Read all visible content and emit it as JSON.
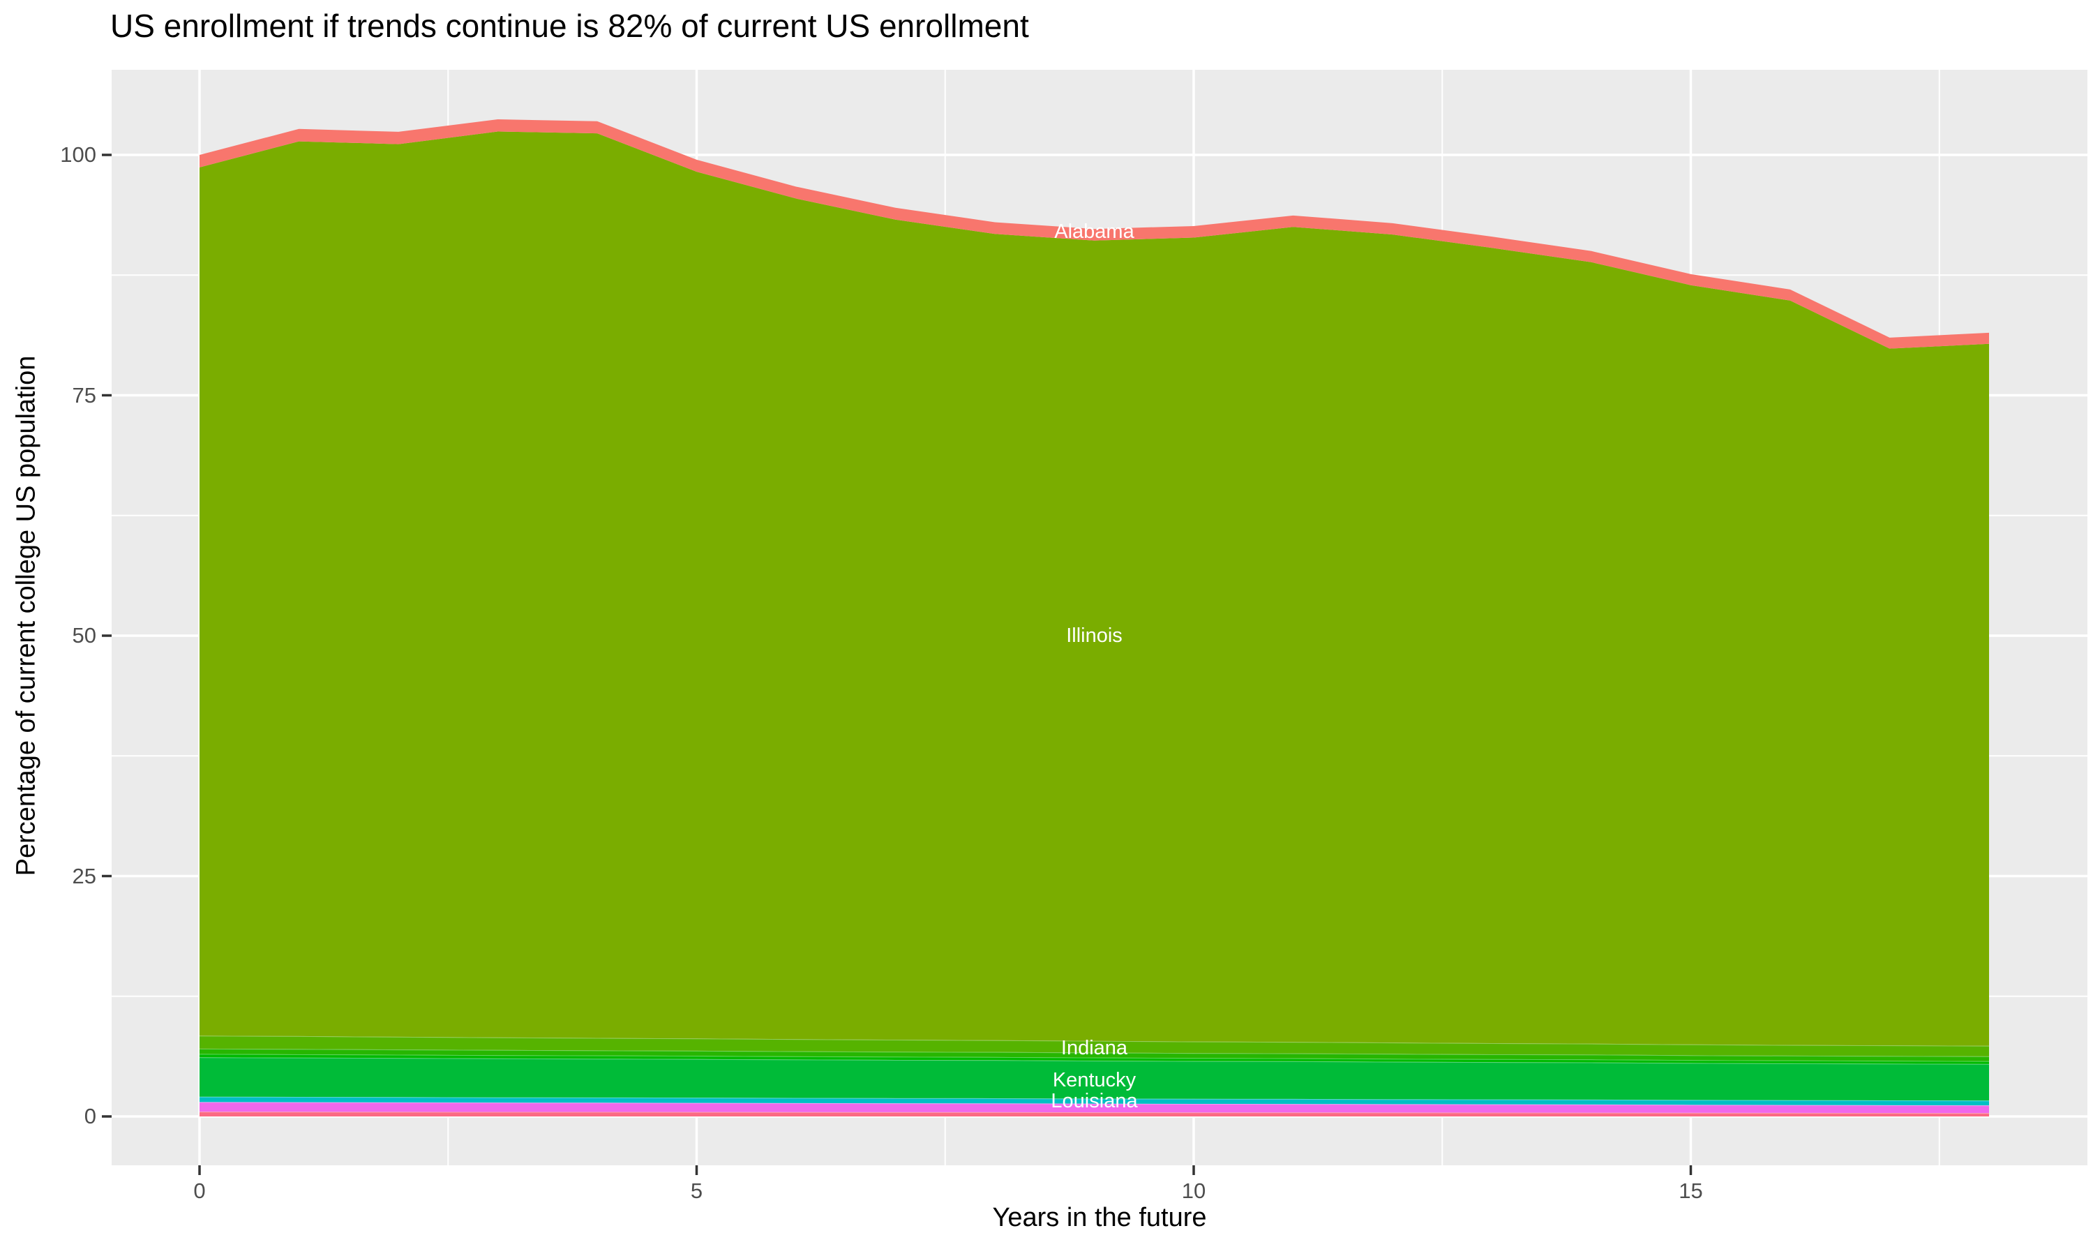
{
  "title": "US enrollment if trends continue is 82% of current US enrollment",
  "axes": {
    "x_label": "Years in the future",
    "y_label": "Percentage of current college US population",
    "x_ticks": [
      0,
      5,
      10,
      15
    ],
    "y_ticks": [
      0,
      25,
      50,
      75,
      100
    ],
    "x_range": [
      0,
      18
    ]
  },
  "colors": {
    "panel_background": "#EBEBEB",
    "gridline": "#FFFFFF",
    "tick_mark": "#333333",
    "tick_text": "#4D4D4D",
    "title_text": "#000000",
    "area_label_text": "#FFFFFF"
  },
  "chart_data": {
    "type": "area",
    "stacked": true,
    "title": "US enrollment if trends continue is 82% of current US enrollment",
    "xlabel": "Years in the future",
    "ylabel": "Percentage of current college US population",
    "xlim": [
      0,
      18
    ],
    "ylim_ticks": [
      0,
      100
    ],
    "grid": true,
    "legend": "none",
    "x": [
      0,
      1,
      2,
      3,
      4,
      5,
      6,
      7,
      8,
      9,
      10,
      11,
      12,
      13,
      14,
      15,
      16,
      17,
      18
    ],
    "total_envelope": [
      100.0,
      102.7,
      102.4,
      103.7,
      103.5,
      99.5,
      96.7,
      94.5,
      93.0,
      92.3,
      92.6,
      93.7,
      92.9,
      91.5,
      90.0,
      87.6,
      86.0,
      81.0,
      81.5
    ],
    "series": [
      {
        "name": "",
        "color": "#FB6A83",
        "values": [
          0.5,
          0.49,
          0.48,
          0.47,
          0.47,
          0.46,
          0.45,
          0.44,
          0.44,
          0.43,
          0.42,
          0.42,
          0.41,
          0.4,
          0.39,
          0.38,
          0.37,
          0.36,
          0.35
        ]
      },
      {
        "name": "Louisiana",
        "color": "#EF67EC",
        "values": [
          1.0,
          0.99,
          0.98,
          0.97,
          0.96,
          0.95,
          0.94,
          0.93,
          0.92,
          0.9,
          0.89,
          0.88,
          0.87,
          0.86,
          0.85,
          0.83,
          0.82,
          0.81,
          0.8
        ]
      },
      {
        "name": "",
        "color": "#00BFC4",
        "values": [
          0.55,
          0.55,
          0.55,
          0.54,
          0.54,
          0.54,
          0.53,
          0.53,
          0.53,
          0.52,
          0.52,
          0.52,
          0.51,
          0.51,
          0.51,
          0.5,
          0.5,
          0.5,
          0.5
        ]
      },
      {
        "name": "Kentucky",
        "color": "#00BB38",
        "values": [
          4.1,
          4.08,
          4.07,
          4.05,
          4.03,
          4.02,
          4.0,
          3.98,
          3.97,
          3.95,
          3.93,
          3.92,
          3.9,
          3.88,
          3.87,
          3.85,
          3.83,
          3.82,
          3.8
        ]
      },
      {
        "name": "",
        "color": "#00BA00",
        "values": [
          0.35,
          0.35,
          0.34,
          0.34,
          0.34,
          0.33,
          0.33,
          0.33,
          0.32,
          0.32,
          0.32,
          0.31,
          0.31,
          0.31,
          0.31,
          0.3,
          0.3,
          0.3,
          0.3
        ]
      },
      {
        "name": "",
        "color": "#27B600",
        "values": [
          0.55,
          0.55,
          0.54,
          0.54,
          0.53,
          0.53,
          0.53,
          0.52,
          0.52,
          0.52,
          0.51,
          0.51,
          0.51,
          0.5,
          0.5,
          0.5,
          0.5,
          0.5,
          0.5
        ]
      },
      {
        "name": "Indiana",
        "color": "#56B300",
        "values": [
          1.35,
          1.34,
          1.32,
          1.31,
          1.29,
          1.28,
          1.26,
          1.25,
          1.23,
          1.22,
          1.2,
          1.19,
          1.17,
          1.16,
          1.14,
          1.13,
          1.11,
          1.1,
          1.1
        ]
      },
      {
        "name": "Illinois",
        "color": "#7AAD00",
        "values": [
          90.3,
          93.06,
          92.84,
          94.21,
          94.08,
          90.14,
          87.42,
          85.29,
          83.85,
          83.23,
          83.61,
          84.76,
          84.04,
          82.71,
          81.27,
          78.96,
          77.42,
          72.46,
          73.0
        ]
      },
      {
        "name": "Alabama",
        "color": "#F8766D",
        "values": [
          1.3,
          1.29,
          1.28,
          1.27,
          1.26,
          1.25,
          1.24,
          1.23,
          1.22,
          1.21,
          1.2,
          1.19,
          1.18,
          1.17,
          1.16,
          1.15,
          1.15,
          1.15,
          1.15
        ]
      }
    ],
    "area_labels": [
      {
        "text": "Alabama",
        "x": 9,
        "y": 92.0
      },
      {
        "text": "Illinois",
        "x": 9,
        "y": 50.0
      },
      {
        "text": "Indiana",
        "x": 9,
        "y": 7.1
      },
      {
        "text": "Kentucky",
        "x": 9,
        "y": 3.8
      },
      {
        "text": "Louisiana",
        "x": 9,
        "y": 1.6
      }
    ]
  }
}
